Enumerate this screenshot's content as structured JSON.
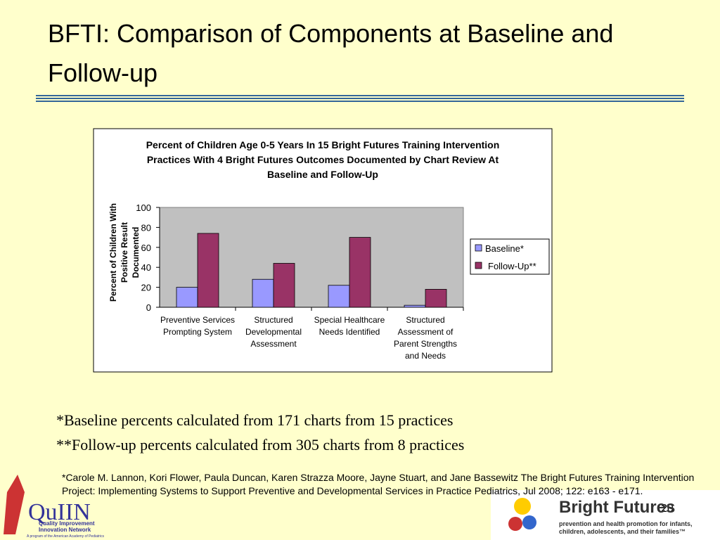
{
  "slide": {
    "title": "BFTI:  Comparison of Components at Baseline and Follow-up",
    "notes": [
      "*Baseline percents calculated from 171 charts from 15 practices",
      "**Follow-up percents calculated from 305 charts from 8 practices"
    ],
    "citation": "*Carole M. Lannon, Kori Flower, Paula Duncan, Karen Strazza Moore, Jayne Stuart, and Jane Bassewitz The Bright Futures Training Intervention Project: Implementing Systems to Support Preventive and Developmental Services in Practice Pediatrics, Jul 2008; 122: e163 - e171.",
    "page_number": "20",
    "left_logo": {
      "name": "QuIIN",
      "line1": "Quality Improvement",
      "line2": "Innovation Network",
      "line3": "A program of the American Academy of Pediatrics"
    },
    "right_logo": {
      "name": "Bright Futures",
      "tagline1": "prevention and health promotion for infants,",
      "tagline2": "children, adolescents, and their families™"
    }
  },
  "chart_data": {
    "type": "bar",
    "title": "Percent of Children Age 0-5 Years In 15 Bright Futures Training Intervention Practices With 4 Bright Futures Outcomes Documented by Chart Review At Baseline and Follow-Up",
    "y_label": "Percent of Children With Positive Result Documented",
    "categories": [
      "Preventive Services Prompting System",
      "Structured Developmental Assessment",
      "Special Healthcare Needs Identified",
      "Structured Assessment of Parent Strengths and Needs"
    ],
    "series": [
      {
        "name": "Baseline*",
        "color": "#9999ff",
        "values": [
          20,
          28,
          22,
          2
        ]
      },
      {
        "name": "Follow-Up**",
        "color": "#993366",
        "values": [
          74,
          44,
          70,
          18
        ]
      }
    ],
    "ylim": [
      0,
      100
    ],
    "yticks": [
      0,
      20,
      40,
      60,
      80,
      100
    ],
    "grid": false,
    "legend": "right",
    "plot_background": "#c0c0c0"
  }
}
